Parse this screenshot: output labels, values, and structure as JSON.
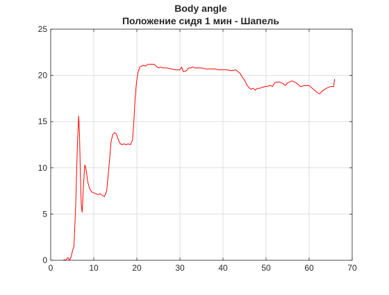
{
  "chart_data": {
    "type": "line",
    "title": "Body angle",
    "subtitle": "Положение сидя 1 мин - Шапель",
    "xlabel": "",
    "ylabel": "",
    "xlim": [
      0,
      70
    ],
    "ylim": [
      0,
      25
    ],
    "xticks": [
      0,
      10,
      20,
      30,
      40,
      50,
      60,
      70
    ],
    "yticks": [
      0,
      5,
      10,
      15,
      20,
      25
    ],
    "grid": true,
    "series": [
      {
        "color": "#ff0000",
        "x": [
          3.0,
          3.5,
          4.0,
          4.4,
          4.8,
          5.1,
          5.4,
          5.8,
          6.2,
          6.5,
          6.7,
          6.9,
          7.1,
          7.3,
          7.6,
          7.9,
          8.1,
          8.3,
          8.6,
          9.0,
          9.5,
          10.0,
          10.5,
          11.0,
          11.5,
          12.0,
          12.5,
          13.0,
          13.3,
          13.7,
          14.0,
          14.4,
          14.8,
          15.2,
          15.6,
          16.0,
          16.5,
          17.0,
          17.5,
          18.0,
          18.5,
          19.0,
          19.3,
          19.6,
          19.9,
          20.3,
          20.7,
          21.1,
          21.5,
          22.0,
          22.5,
          23.0,
          23.5,
          24.0,
          24.5,
          25.0,
          25.5,
          26.0,
          27.0,
          28.0,
          29.0,
          30.0,
          30.4,
          30.8,
          31.5,
          32.0,
          32.5,
          33.0,
          33.5,
          34.0,
          35.0,
          36.0,
          37.0,
          38.0,
          39.0,
          40.0,
          41.0,
          42.0,
          43.0,
          43.5,
          44.0,
          44.5,
          45.0,
          45.5,
          46.0,
          46.5,
          47.0,
          47.5,
          48.0,
          48.5,
          49.0,
          50.0,
          51.0,
          51.5,
          52.0,
          53.0,
          54.0,
          54.5,
          55.0,
          56.0,
          57.0,
          58.0,
          59.0,
          60.0,
          60.5,
          61.0,
          61.5,
          62.0,
          62.5,
          63.0,
          64.0,
          65.0,
          65.7,
          65.9
        ],
        "values": [
          0.1,
          0.0,
          0.3,
          0.0,
          0.5,
          1.1,
          1.5,
          6.0,
          12.5,
          15.6,
          13.5,
          9.0,
          6.0,
          5.2,
          8.0,
          10.3,
          10.1,
          9.5,
          8.5,
          7.8,
          7.4,
          7.3,
          7.2,
          7.1,
          7.2,
          7.0,
          6.9,
          7.5,
          9.0,
          11.0,
          12.8,
          13.6,
          13.8,
          13.7,
          13.2,
          12.7,
          12.5,
          12.6,
          12.5,
          12.6,
          12.5,
          13.0,
          15.0,
          17.5,
          19.2,
          20.4,
          20.9,
          21.0,
          21.1,
          21.0,
          21.2,
          21.2,
          21.2,
          21.2,
          21.0,
          20.8,
          20.9,
          20.8,
          20.8,
          20.7,
          20.6,
          20.6,
          20.9,
          20.4,
          20.5,
          20.8,
          20.8,
          20.9,
          20.8,
          20.8,
          20.8,
          20.7,
          20.7,
          20.7,
          20.6,
          20.6,
          20.6,
          20.5,
          20.6,
          20.4,
          20.2,
          19.8,
          19.5,
          19.0,
          18.7,
          18.5,
          18.6,
          18.4,
          18.6,
          18.6,
          18.7,
          18.8,
          18.9,
          18.8,
          19.2,
          19.3,
          19.1,
          18.9,
          19.2,
          19.4,
          19.2,
          18.8,
          18.9,
          18.9,
          18.7,
          18.5,
          18.3,
          18.1,
          18.0,
          18.3,
          18.6,
          18.8,
          18.8,
          19.6
        ]
      }
    ]
  }
}
